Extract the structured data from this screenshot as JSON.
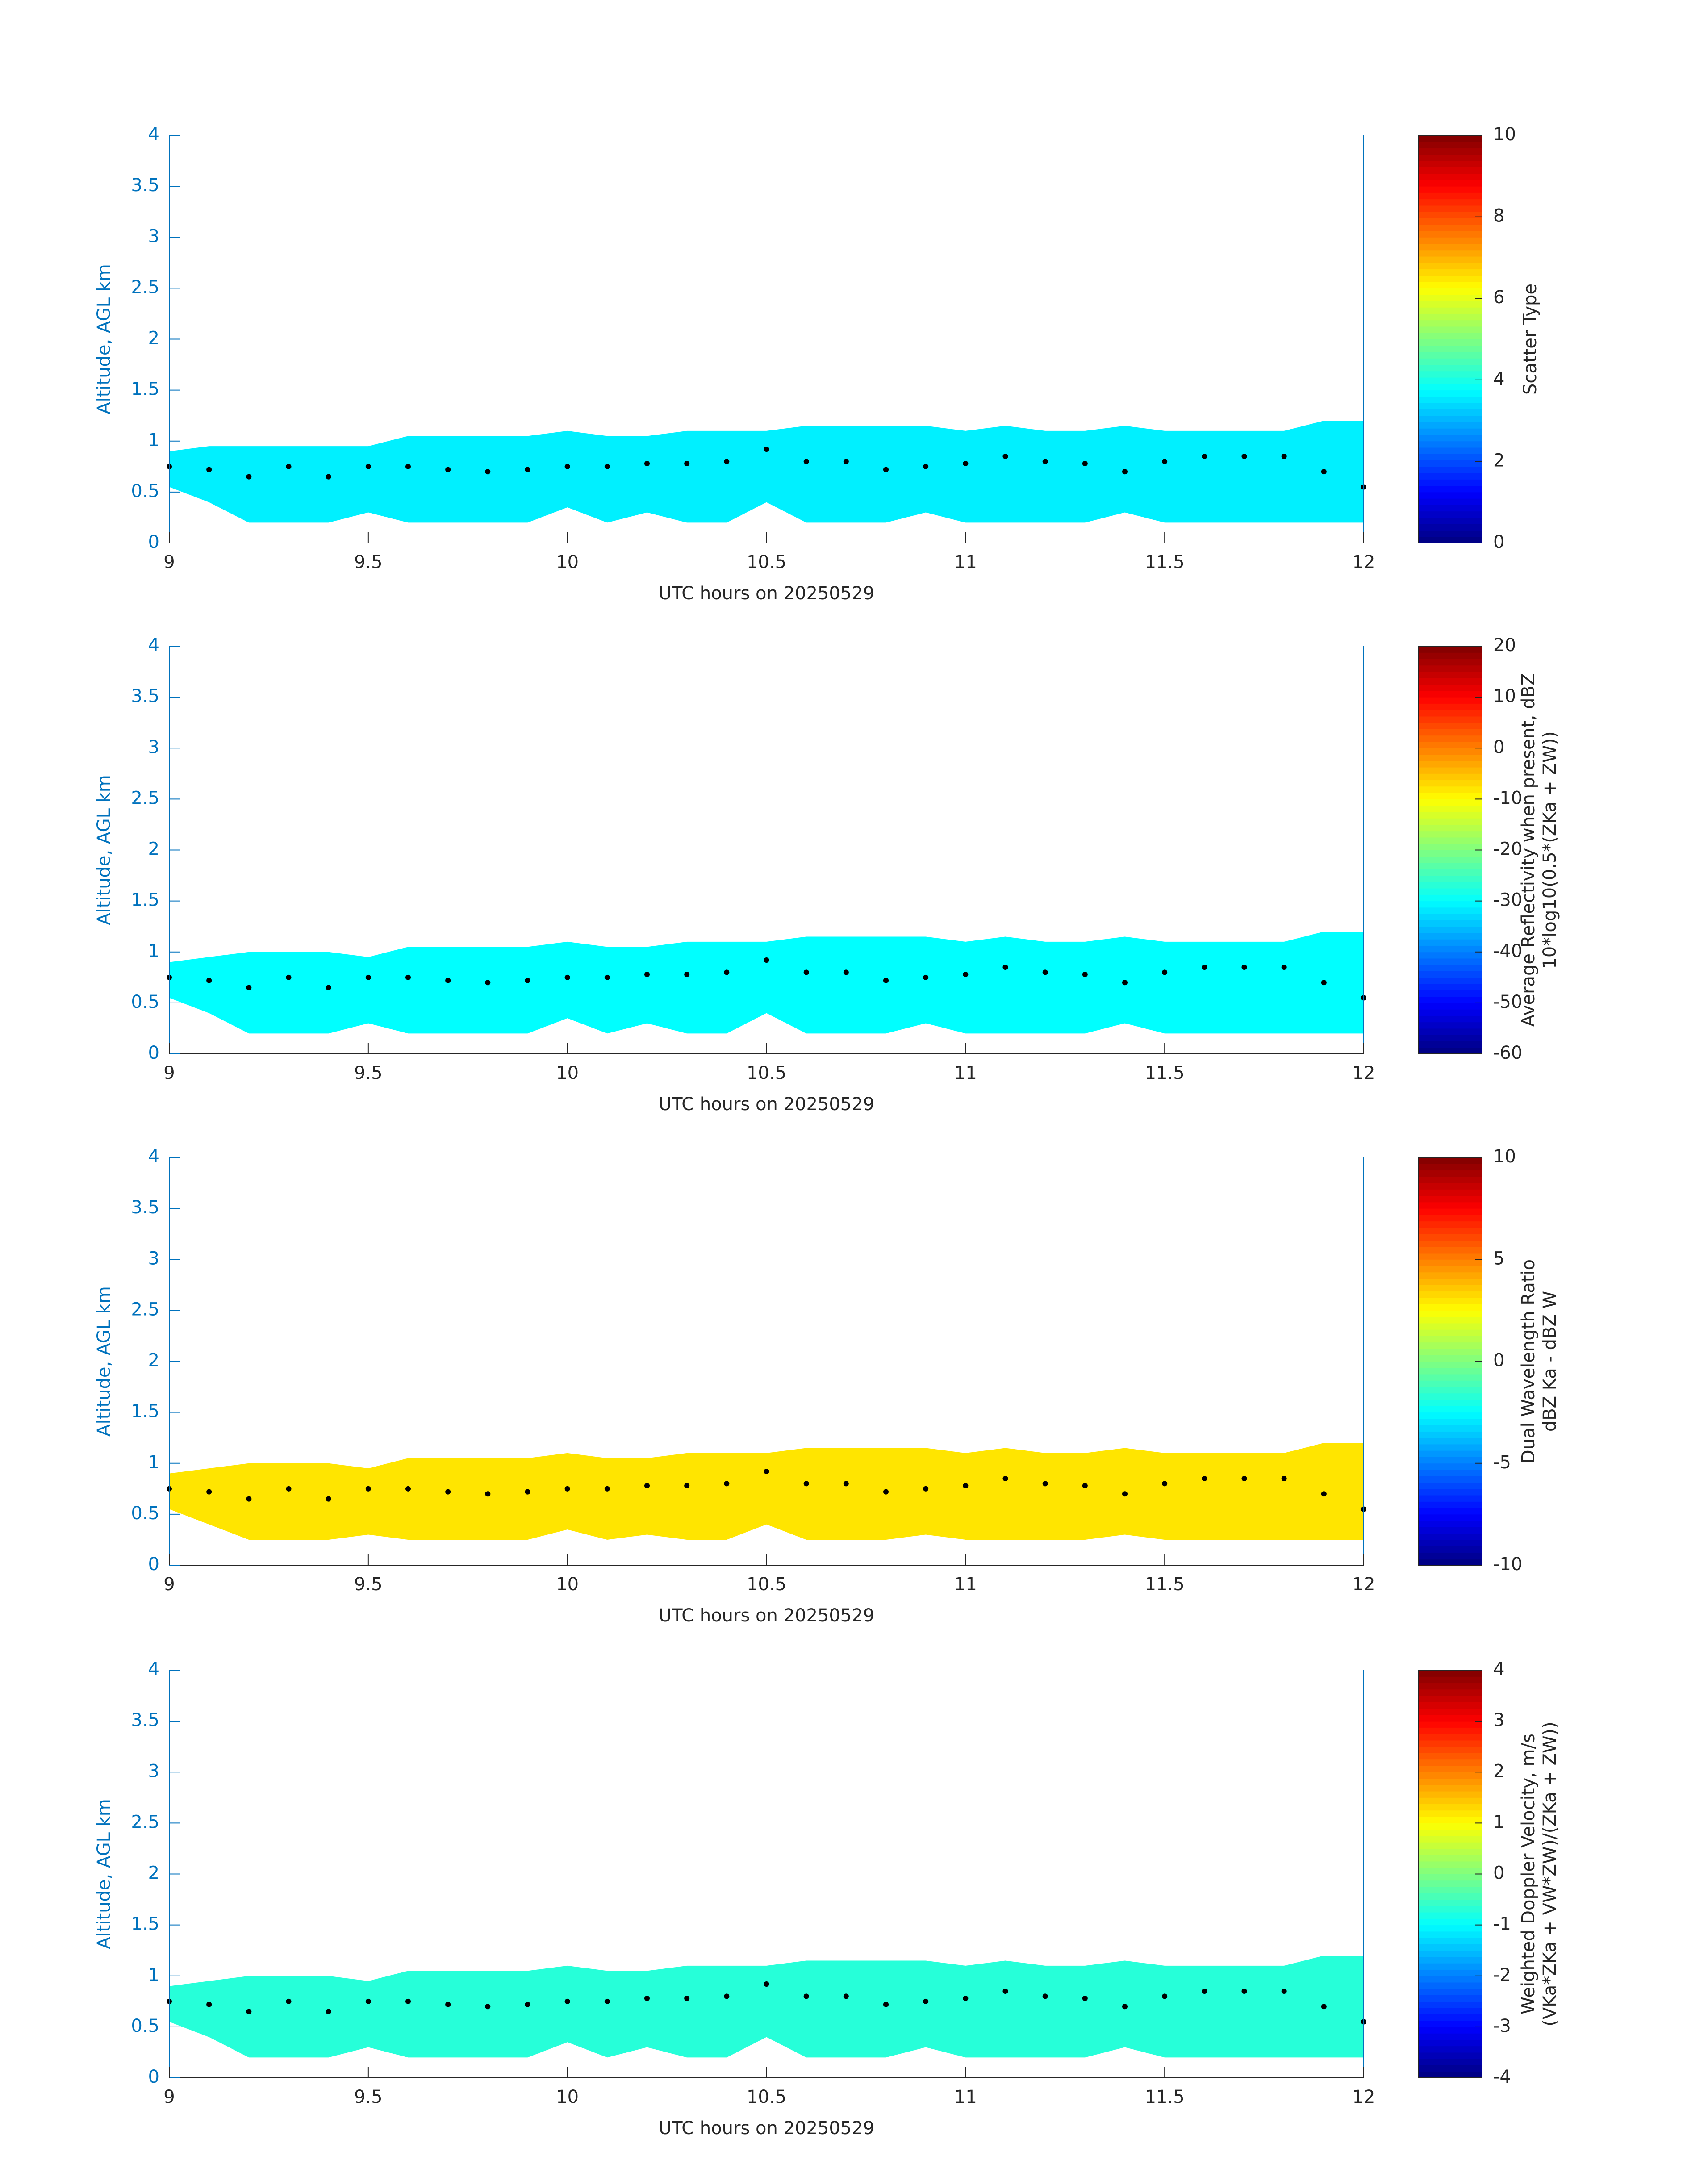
{
  "chart_data": [
    {
      "type": "area",
      "xlabel": "UTC hours on 20250529",
      "ylabel": "Altitude, AGL km",
      "colorbar_label": [
        "Scatter Type"
      ],
      "xlim": [
        9,
        12
      ],
      "ylim": [
        0,
        4
      ],
      "xticks": [
        9,
        9.5,
        10,
        10.5,
        11,
        11.5,
        12
      ],
      "yticks": [
        0,
        0.5,
        1,
        1.5,
        2,
        2.5,
        3,
        3.5,
        4
      ],
      "clim": [
        0,
        10
      ],
      "cticks": [
        0,
        2,
        4,
        6,
        8,
        10
      ],
      "fill_value": 3.6,
      "x": [
        9.0,
        9.1,
        9.2,
        9.3,
        9.4,
        9.5,
        9.6,
        9.7,
        9.8,
        9.9,
        10.0,
        10.1,
        10.2,
        10.3,
        10.4,
        10.5,
        10.6,
        10.7,
        10.8,
        10.9,
        11.0,
        11.1,
        11.2,
        11.3,
        11.4,
        11.5,
        11.6,
        11.7,
        11.8,
        11.9,
        12.0
      ],
      "top": [
        0.9,
        0.95,
        0.95,
        0.95,
        0.95,
        0.95,
        1.05,
        1.05,
        1.05,
        1.05,
        1.1,
        1.05,
        1.05,
        1.1,
        1.1,
        1.1,
        1.15,
        1.15,
        1.15,
        1.15,
        1.1,
        1.15,
        1.1,
        1.1,
        1.15,
        1.1,
        1.1,
        1.1,
        1.1,
        1.2,
        1.2
      ],
      "base": [
        0.55,
        0.4,
        0.2,
        0.2,
        0.2,
        0.3,
        0.2,
        0.2,
        0.2,
        0.2,
        0.35,
        0.2,
        0.3,
        0.2,
        0.2,
        0.4,
        0.2,
        0.2,
        0.2,
        0.3,
        0.2,
        0.2,
        0.2,
        0.2,
        0.3,
        0.2,
        0.2,
        0.2,
        0.2,
        0.2,
        0.2
      ],
      "dots": [
        0.75,
        0.72,
        0.65,
        0.75,
        0.65,
        0.75,
        0.75,
        0.72,
        0.7,
        0.72,
        0.75,
        0.75,
        0.78,
        0.78,
        0.8,
        0.92,
        0.8,
        0.8,
        0.72,
        0.75,
        0.78,
        0.85,
        0.8,
        0.78,
        0.7,
        0.8,
        0.85,
        0.85,
        0.85,
        0.7,
        0.55
      ]
    },
    {
      "type": "area",
      "xlabel": "UTC hours on 20250529",
      "ylabel": "Altitude, AGL km",
      "colorbar_label": [
        "Average Reflectivity when present, dBZ",
        "10*log10(0.5*(ZKa + ZW))"
      ],
      "xlim": [
        9,
        12
      ],
      "ylim": [
        0,
        4
      ],
      "xticks": [
        9,
        9.5,
        10,
        10.5,
        11,
        11.5,
        12
      ],
      "yticks": [
        0,
        0.5,
        1,
        1.5,
        2,
        2.5,
        3,
        3.5,
        4
      ],
      "clim": [
        -60,
        20
      ],
      "cticks": [
        -60,
        -50,
        -40,
        -30,
        -20,
        -10,
        0,
        10,
        20
      ],
      "fill_value": -30,
      "x": [
        9.0,
        9.1,
        9.2,
        9.3,
        9.4,
        9.5,
        9.6,
        9.7,
        9.8,
        9.9,
        10.0,
        10.1,
        10.2,
        10.3,
        10.4,
        10.5,
        10.6,
        10.7,
        10.8,
        10.9,
        11.0,
        11.1,
        11.2,
        11.3,
        11.4,
        11.5,
        11.6,
        11.7,
        11.8,
        11.9,
        12.0
      ],
      "top": [
        0.9,
        0.95,
        1.0,
        1.0,
        1.0,
        0.95,
        1.05,
        1.05,
        1.05,
        1.05,
        1.1,
        1.05,
        1.05,
        1.1,
        1.1,
        1.1,
        1.15,
        1.15,
        1.15,
        1.15,
        1.1,
        1.15,
        1.1,
        1.1,
        1.15,
        1.1,
        1.1,
        1.1,
        1.1,
        1.2,
        1.2
      ],
      "base": [
        0.55,
        0.4,
        0.2,
        0.2,
        0.2,
        0.3,
        0.2,
        0.2,
        0.2,
        0.2,
        0.35,
        0.2,
        0.3,
        0.2,
        0.2,
        0.4,
        0.2,
        0.2,
        0.2,
        0.3,
        0.2,
        0.2,
        0.2,
        0.2,
        0.3,
        0.2,
        0.2,
        0.2,
        0.2,
        0.2,
        0.2
      ],
      "dots": [
        0.75,
        0.72,
        0.65,
        0.75,
        0.65,
        0.75,
        0.75,
        0.72,
        0.7,
        0.72,
        0.75,
        0.75,
        0.78,
        0.78,
        0.8,
        0.92,
        0.8,
        0.8,
        0.72,
        0.75,
        0.78,
        0.85,
        0.8,
        0.78,
        0.7,
        0.8,
        0.85,
        0.85,
        0.85,
        0.7,
        0.55
      ]
    },
    {
      "type": "area",
      "xlabel": "UTC hours on 20250529",
      "ylabel": "Altitude, AGL km",
      "colorbar_label": [
        "Dual Wavelength Ratio",
        "dBZ Ka - dBZ W"
      ],
      "xlim": [
        9,
        12
      ],
      "ylim": [
        0,
        4
      ],
      "xticks": [
        9,
        9.5,
        10,
        10.5,
        11,
        11.5,
        12
      ],
      "yticks": [
        0,
        0.5,
        1,
        1.5,
        2,
        2.5,
        3,
        3.5,
        4
      ],
      "clim": [
        -10,
        10
      ],
      "cticks": [
        -10,
        -5,
        0,
        5,
        10
      ],
      "fill_value": 3,
      "x": [
        9.0,
        9.1,
        9.2,
        9.3,
        9.4,
        9.5,
        9.6,
        9.7,
        9.8,
        9.9,
        10.0,
        10.1,
        10.2,
        10.3,
        10.4,
        10.5,
        10.6,
        10.7,
        10.8,
        10.9,
        11.0,
        11.1,
        11.2,
        11.3,
        11.4,
        11.5,
        11.6,
        11.7,
        11.8,
        11.9,
        12.0
      ],
      "top": [
        0.9,
        0.95,
        1.0,
        1.0,
        1.0,
        0.95,
        1.05,
        1.05,
        1.05,
        1.05,
        1.1,
        1.05,
        1.05,
        1.1,
        1.1,
        1.1,
        1.15,
        1.15,
        1.15,
        1.15,
        1.1,
        1.15,
        1.1,
        1.1,
        1.15,
        1.1,
        1.1,
        1.1,
        1.1,
        1.2,
        1.2
      ],
      "base": [
        0.55,
        0.4,
        0.25,
        0.25,
        0.25,
        0.3,
        0.25,
        0.25,
        0.25,
        0.25,
        0.35,
        0.25,
        0.3,
        0.25,
        0.25,
        0.4,
        0.25,
        0.25,
        0.25,
        0.3,
        0.25,
        0.25,
        0.25,
        0.25,
        0.3,
        0.25,
        0.25,
        0.25,
        0.25,
        0.25,
        0.25
      ],
      "dots": [
        0.75,
        0.72,
        0.65,
        0.75,
        0.65,
        0.75,
        0.75,
        0.72,
        0.7,
        0.72,
        0.75,
        0.75,
        0.78,
        0.78,
        0.8,
        0.92,
        0.8,
        0.8,
        0.72,
        0.75,
        0.78,
        0.85,
        0.8,
        0.78,
        0.7,
        0.8,
        0.85,
        0.85,
        0.85,
        0.7,
        0.55
      ]
    },
    {
      "type": "area",
      "xlabel": "UTC hours on 20250529",
      "ylabel": "Altitude, AGL km",
      "colorbar_label": [
        "Weighted Doppler Velocity, m/s",
        "(VKa*ZKa + VW*ZW)/(ZKa + ZW))"
      ],
      "xlim": [
        9,
        12
      ],
      "ylim": [
        0,
        4
      ],
      "xticks": [
        9,
        9.5,
        10,
        10.5,
        11,
        11.5,
        12
      ],
      "yticks": [
        0,
        0.5,
        1,
        1.5,
        2,
        2.5,
        3,
        3.5,
        4
      ],
      "clim": [
        -4,
        4
      ],
      "cticks": [
        -4,
        -3,
        -2,
        -1,
        0,
        1,
        2,
        3,
        4
      ],
      "fill_value": -0.7,
      "x": [
        9.0,
        9.1,
        9.2,
        9.3,
        9.4,
        9.5,
        9.6,
        9.7,
        9.8,
        9.9,
        10.0,
        10.1,
        10.2,
        10.3,
        10.4,
        10.5,
        10.6,
        10.7,
        10.8,
        10.9,
        11.0,
        11.1,
        11.2,
        11.3,
        11.4,
        11.5,
        11.6,
        11.7,
        11.8,
        11.9,
        12.0
      ],
      "top": [
        0.9,
        0.95,
        1.0,
        1.0,
        1.0,
        0.95,
        1.05,
        1.05,
        1.05,
        1.05,
        1.1,
        1.05,
        1.05,
        1.1,
        1.1,
        1.1,
        1.15,
        1.15,
        1.15,
        1.15,
        1.1,
        1.15,
        1.1,
        1.1,
        1.15,
        1.1,
        1.1,
        1.1,
        1.1,
        1.2,
        1.2
      ],
      "base": [
        0.55,
        0.4,
        0.2,
        0.2,
        0.2,
        0.3,
        0.2,
        0.2,
        0.2,
        0.2,
        0.35,
        0.2,
        0.3,
        0.2,
        0.2,
        0.4,
        0.2,
        0.2,
        0.2,
        0.3,
        0.2,
        0.2,
        0.2,
        0.2,
        0.3,
        0.2,
        0.2,
        0.2,
        0.2,
        0.2,
        0.2
      ],
      "dots": [
        0.75,
        0.72,
        0.65,
        0.75,
        0.65,
        0.75,
        0.75,
        0.72,
        0.7,
        0.72,
        0.75,
        0.75,
        0.78,
        0.78,
        0.8,
        0.92,
        0.8,
        0.8,
        0.72,
        0.75,
        0.78,
        0.85,
        0.8,
        0.78,
        0.7,
        0.8,
        0.85,
        0.85,
        0.85,
        0.7,
        0.55
      ]
    }
  ]
}
